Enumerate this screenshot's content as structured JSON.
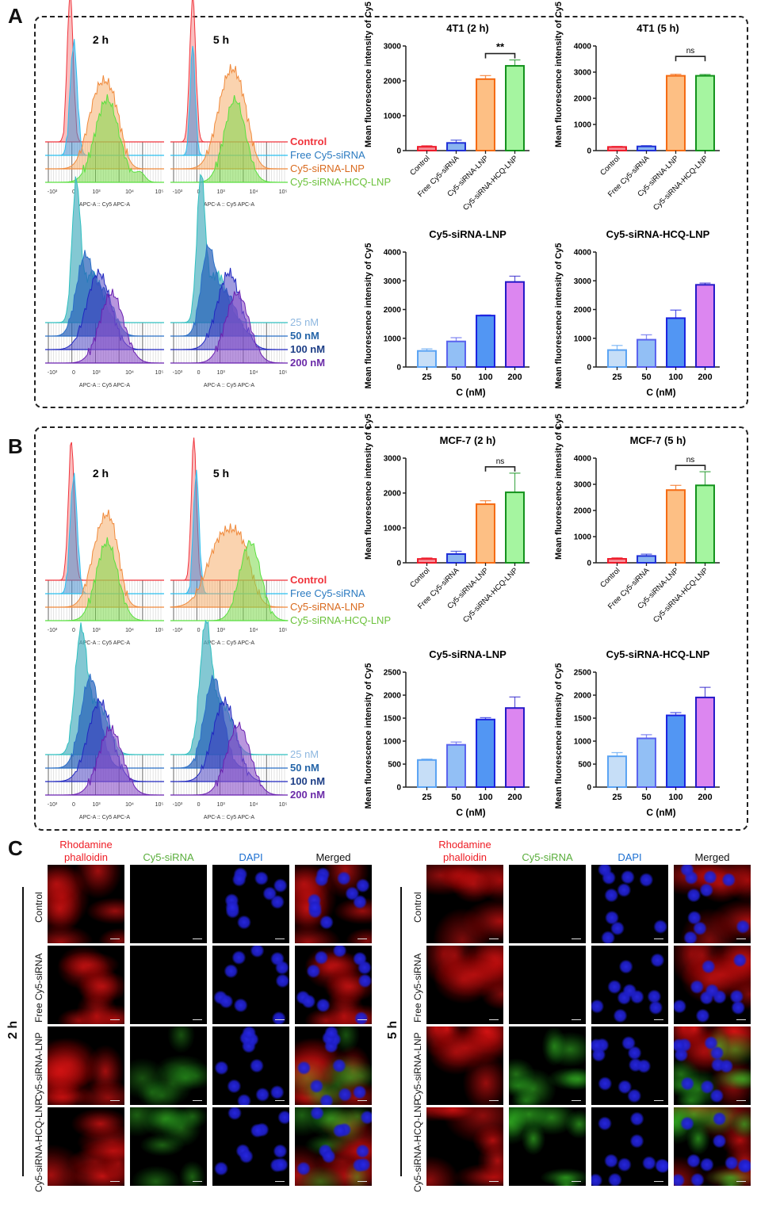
{
  "panels": {
    "A": {
      "letter": "A"
    },
    "B": {
      "letter": "B"
    },
    "C": {
      "letter": "C"
    }
  },
  "flow": {
    "time_labels": [
      "2 h",
      "5 h"
    ],
    "x_axis_label": "APC-A :: Cy5 APC-A",
    "x_ticks": [
      "-10³",
      "0",
      "10³",
      "10⁴",
      "10⁵"
    ],
    "group_legend": [
      {
        "label": "Control",
        "color": "#f0343c"
      },
      {
        "label": "Free Cy5-siRNA",
        "color": "#2a7ac0"
      },
      {
        "label": "Cy5-siRNA-LNP",
        "color": "#d96a1e"
      },
      {
        "label": "Cy5-siRNA-HCQ-LNP",
        "color": "#6cc23c"
      }
    ],
    "conc_legend": [
      {
        "label": "25 nM",
        "color": "#8fb8e0"
      },
      {
        "label": "50 nM",
        "color": "#2565a8"
      },
      {
        "label": "100 nM",
        "color": "#1d3e86"
      },
      {
        "label": "200 nM",
        "color": "#6a2aa8"
      }
    ]
  },
  "chart_data": [
    {
      "id": "a1",
      "type": "bar",
      "title": "4T1 (2 h)",
      "ylabel": "Mean fluorescence intensity of Cy5",
      "xlabel": "",
      "categories": [
        "Control",
        "Free Cy5-siRNA",
        "Cy5-siRNA-LNP",
        "Cy5-siRNA-HCQ-LNP"
      ],
      "values": [
        110,
        220,
        2050,
        2430
      ],
      "errors": [
        30,
        80,
        100,
        170
      ],
      "ylim": [
        0,
        3000
      ],
      "yticks": [
        0,
        1000,
        2000,
        3000
      ],
      "significance": {
        "between": [
          2,
          3
        ],
        "label": "**"
      },
      "palette": "group"
    },
    {
      "id": "a2",
      "type": "bar",
      "title": "4T1 (5 h)",
      "ylabel": "Mean fluorescence intensity of Cy5",
      "xlabel": "",
      "categories": [
        "Control",
        "Free Cy5-siRNA",
        "Cy5-siRNA-LNP",
        "Cy5-siRNA-HCQ-LNP"
      ],
      "values": [
        140,
        160,
        2860,
        2860
      ],
      "errors": [
        20,
        30,
        60,
        50
      ],
      "ylim": [
        0,
        4000
      ],
      "yticks": [
        0,
        1000,
        2000,
        3000,
        4000
      ],
      "significance": {
        "between": [
          2,
          3
        ],
        "label": "ns"
      },
      "palette": "group"
    },
    {
      "id": "a3",
      "type": "bar",
      "title": "Cy5-siRNA-LNP",
      "ylabel": "Mean fluorescence intensity of Cy5",
      "xlabel": "C (nM)",
      "categories": [
        "25",
        "50",
        "100",
        "200"
      ],
      "values": [
        560,
        890,
        1790,
        2960
      ],
      "errors": [
        70,
        130,
        20,
        200
      ],
      "ylim": [
        0,
        4000
      ],
      "yticks": [
        0,
        1000,
        2000,
        3000,
        4000
      ],
      "palette": "conc"
    },
    {
      "id": "a4",
      "type": "bar",
      "title": "Cy5-siRNA-HCQ-LNP",
      "ylabel": "Mean fluorescence intensity of Cy5",
      "xlabel": "C (nM)",
      "categories": [
        "25",
        "50",
        "100",
        "200"
      ],
      "values": [
        590,
        950,
        1700,
        2860
      ],
      "errors": [
        160,
        170,
        280,
        60
      ],
      "ylim": [
        0,
        4000
      ],
      "yticks": [
        0,
        1000,
        2000,
        3000,
        4000
      ],
      "palette": "conc"
    },
    {
      "id": "b1",
      "type": "bar",
      "title": "MCF-7 (2 h)",
      "ylabel": "Mean fluorescence intensity of Cy5",
      "xlabel": "",
      "categories": [
        "Control",
        "Free Cy5-siRNA",
        "Cy5-siRNA-LNP",
        "Cy5-siRNA-HCQ-LNP"
      ],
      "values": [
        110,
        250,
        1680,
        2020
      ],
      "errors": [
        30,
        80,
        100,
        550
      ],
      "ylim": [
        0,
        3000
      ],
      "yticks": [
        0,
        1000,
        2000,
        3000
      ],
      "significance": {
        "between": [
          2,
          3
        ],
        "label": "ns"
      },
      "palette": "group"
    },
    {
      "id": "b2",
      "type": "bar",
      "title": "MCF-7 (5 h)",
      "ylabel": "Mean fluorescence intensity of Cy5",
      "xlabel": "",
      "categories": [
        "Control",
        "Free Cy5-siRNA",
        "Cy5-siRNA-LNP",
        "Cy5-siRNA-HCQ-LNP"
      ],
      "values": [
        150,
        260,
        2780,
        2960
      ],
      "errors": [
        40,
        70,
        180,
        520
      ],
      "ylim": [
        0,
        4000
      ],
      "yticks": [
        0,
        1000,
        2000,
        3000,
        4000
      ],
      "significance": {
        "between": [
          2,
          3
        ],
        "label": "ns"
      },
      "palette": "group"
    },
    {
      "id": "b3",
      "type": "bar",
      "title": "Cy5-siRNA-LNP",
      "ylabel": "Mean fluorescence intensity of Cy5",
      "xlabel": "C (nM)",
      "categories": [
        "25",
        "50",
        "100",
        "200"
      ],
      "values": [
        590,
        920,
        1470,
        1720
      ],
      "errors": [
        20,
        60,
        40,
        240
      ],
      "ylim": [
        0,
        2500
      ],
      "yticks": [
        0,
        500,
        1000,
        1500,
        2000,
        2500
      ],
      "palette": "conc"
    },
    {
      "id": "b4",
      "type": "bar",
      "title": "Cy5-siRNA-HCQ-LNP",
      "ylabel": "Mean fluorescence intensity of Cy5",
      "xlabel": "C (nM)",
      "categories": [
        "25",
        "50",
        "100",
        "200"
      ],
      "values": [
        670,
        1060,
        1560,
        1950
      ],
      "errors": [
        80,
        80,
        60,
        220
      ],
      "ylim": [
        0,
        2500
      ],
      "yticks": [
        0,
        500,
        1000,
        1500,
        2000,
        2500
      ],
      "palette": "conc"
    }
  ],
  "palettes": {
    "group": {
      "fill": [
        "#f58e97",
        "#8ab5f0",
        "#fdbf84",
        "#a5f5a0"
      ],
      "stroke": [
        "#ee1b2a",
        "#1f2fd6",
        "#f56a12",
        "#11911b"
      ]
    },
    "conc": {
      "fill": [
        "#c6def7",
        "#92bff5",
        "#5296f3",
        "#dc86f0"
      ],
      "stroke": [
        "#5aa3f3",
        "#5a62ee",
        "#1a22e0",
        "#2418c8"
      ]
    }
  },
  "microscopy": {
    "channels": [
      {
        "label": "Rhodamine\nphalloidin",
        "color": "#ee1c24"
      },
      {
        "label": "Cy5-siRNA",
        "color": "#5aae3c"
      },
      {
        "label": "DAPI",
        "color": "#1c6fd1"
      },
      {
        "label": "Merged",
        "color": "#111111"
      }
    ],
    "rows": [
      "Control",
      "Free Cy5-siRNA",
      "Cy5-siRNA-LNP",
      "Cy5-siRNA-HCQ-LNP"
    ],
    "time_points": [
      "2 h",
      "5 h"
    ],
    "green_intensity": [
      [
        0,
        0.05,
        0.5,
        0.6
      ],
      [
        0,
        0.08,
        0.7,
        0.8
      ]
    ]
  }
}
